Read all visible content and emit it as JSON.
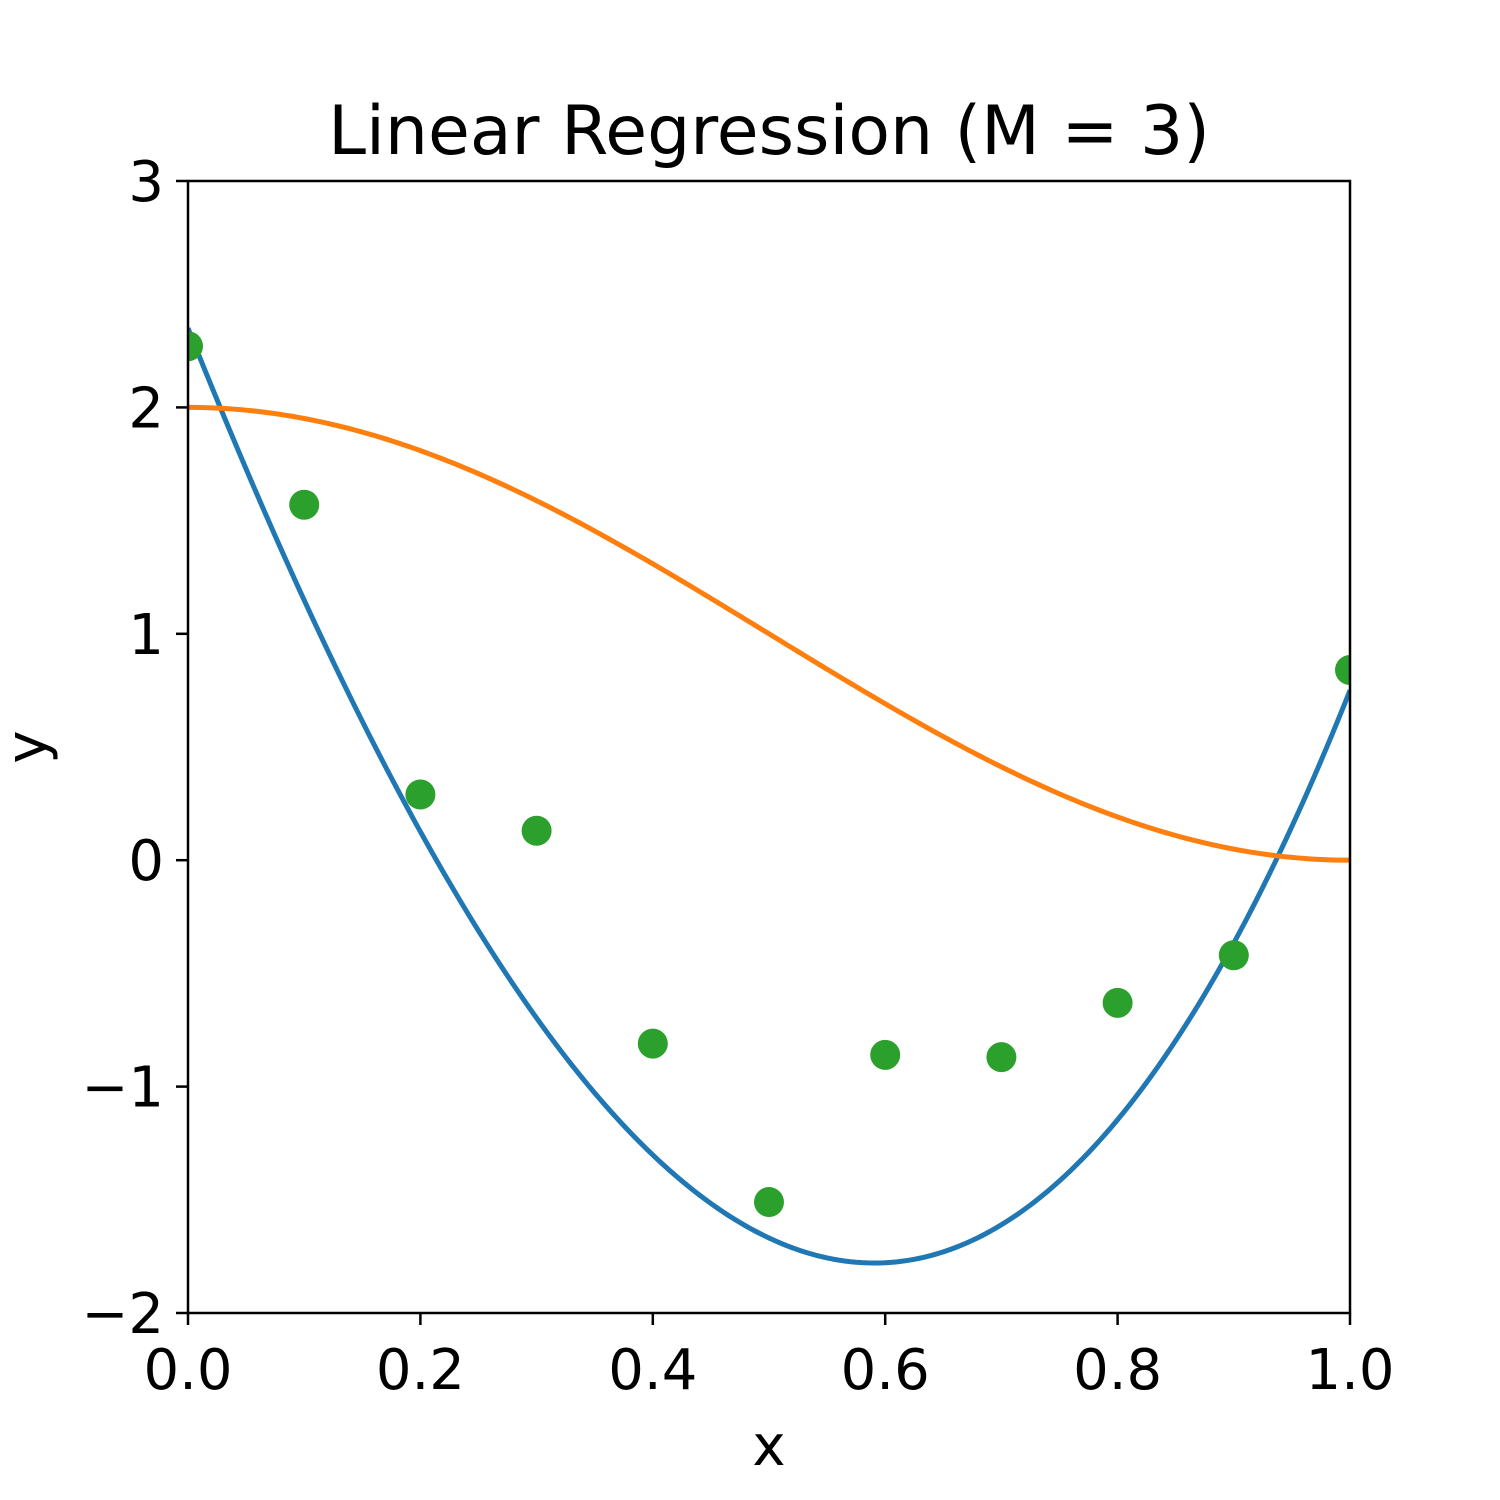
{
  "chart_data": {
    "type": "line",
    "title": "Linear Regression (M = 3)",
    "xlabel": "x",
    "ylabel": "y",
    "xlim": [
      0.0,
      1.0
    ],
    "ylim": [
      -2,
      3
    ],
    "x_ticks": [
      "0.0",
      "0.2",
      "0.4",
      "0.6",
      "0.8",
      "1.0"
    ],
    "x_tick_values": [
      0.0,
      0.2,
      0.4,
      0.6,
      0.8,
      1.0
    ],
    "y_ticks": [
      "−2",
      "−1",
      "0",
      "1",
      "2",
      "3"
    ],
    "y_tick_values": [
      -2,
      -1,
      0,
      1,
      2,
      3
    ],
    "grid": false,
    "legend": "none",
    "series": [
      {
        "kind": "line",
        "color": "#1f77b4",
        "model": "cubic polynomial fit",
        "coefficients": [
          2.35,
          -12.85,
          8.0,
          3.25
        ]
      },
      {
        "kind": "line",
        "color": "#ff7f0e",
        "model": "true function 1 + cos(pi*x)",
        "samples": 200
      },
      {
        "kind": "scatter",
        "color": "#2ca02c",
        "x": [
          0.0,
          0.1,
          0.2,
          0.3,
          0.4,
          0.5,
          0.6,
          0.7,
          0.8,
          0.9,
          1.0
        ],
        "y": [
          2.27,
          1.57,
          0.29,
          0.13,
          -0.81,
          -1.51,
          -0.86,
          -0.87,
          -0.63,
          -0.42,
          0.84
        ]
      }
    ]
  }
}
